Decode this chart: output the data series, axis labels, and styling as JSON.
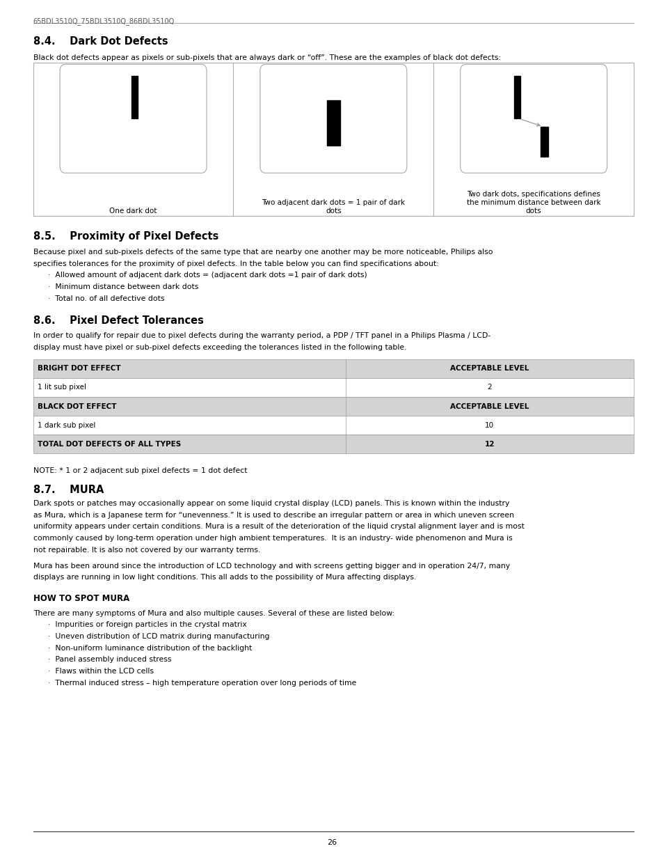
{
  "page_width": 9.54,
  "page_height": 12.35,
  "bg_color": "#ffffff",
  "text_color": "#000000",
  "header_text": "65BDL3510Q_75BDL3510Q_86BDL3510Q",
  "section_84_title": "8.4.    Dark Dot Defects",
  "section_84_body": "Black dot defects appear as pixels or sub-pixels that are always dark or “off”. These are the examples of black dot defects:",
  "diagram_labels": [
    "One dark dot",
    "Two adjacent dark dots = 1 pair of dark\ndots",
    "Two dark dots, specifications defines\nthe minimum distance between dark\ndots"
  ],
  "section_85_title": "8.5.    Proximity of Pixel Defects",
  "section_85_body_lines": [
    "Because pixel and sub-pixels defects of the same type that are nearby one another may be more noticeable, Philips also",
    "specifies tolerances for the proximity of pixel defects. In the table below you can find specifications about:"
  ],
  "section_85_bullets": [
    "Allowed amount of adjacent dark dots = (adjacent dark dots =1 pair of dark dots)",
    "Minimum distance between dark dots",
    "Total no. of all defective dots"
  ],
  "section_86_title": "8.6.    Pixel Defect Tolerances",
  "section_86_body_lines": [
    "In order to qualify for repair due to pixel defects during the warranty period, a PDP / TFT panel in a Philips Plasma / LCD-",
    "display must have pixel or sub-pixel defects exceeding the tolerances listed in the following table."
  ],
  "table_rows": [
    {
      "col1": "BRIGHT DOT EFFECT",
      "col2": "ACCEPTABLE LEVEL",
      "header": true
    },
    {
      "col1": "1 lit sub pixel",
      "col2": "2",
      "header": false
    },
    {
      "col1": "BLACK DOT EFFECT",
      "col2": "ACCEPTABLE LEVEL",
      "header": true
    },
    {
      "col1": "1 dark sub pixel",
      "col2": "10",
      "header": false
    },
    {
      "col1": "TOTAL DOT DEFECTS OF ALL TYPES",
      "col2": "12",
      "header": true
    }
  ],
  "table_header_bg": "#d3d3d3",
  "table_body_bg": "#ffffff",
  "note_text": "NOTE: * 1 or 2 adjacent sub pixel defects = 1 dot defect",
  "section_87_title": "8.7.    MURA",
  "section_87_body1_lines": [
    "Dark spots or patches may occasionally appear on some liquid crystal display (LCD) panels. This is known within the industry",
    "as Mura, which is a Japanese term for “unevenness.” It is used to describe an irregular pattern or area in which uneven screen",
    "uniformity appears under certain conditions. Mura is a result of the deterioration of the liquid crystal alignment layer and is most",
    "commonly caused by long-term operation under high ambient temperatures.  It is an industry- wide phenomenon and Mura is",
    "not repairable. It is also not covered by our warranty terms."
  ],
  "section_87_body2_lines": [
    "Mura has been around since the introduction of LCD technology and with screens getting bigger and in operation 24/7, many",
    "displays are running in low light conditions. This all adds to the possibility of Mura affecting displays."
  ],
  "how_to_spot_title": "HOW TO SPOT MURA",
  "how_to_spot_body": "There are many symptoms of Mura and also multiple causes. Several of these are listed below:",
  "how_to_spot_bullets": [
    "Impurities or foreign particles in the crystal matrix",
    "Uneven distribution of LCD matrix during manufacturing",
    "Non-uniform luminance distribution of the backlight",
    "Panel assembly induced stress",
    "Flaws within the LCD cells",
    "Thermal induced stress – high temperature operation over long periods of time"
  ],
  "page_number": "26"
}
